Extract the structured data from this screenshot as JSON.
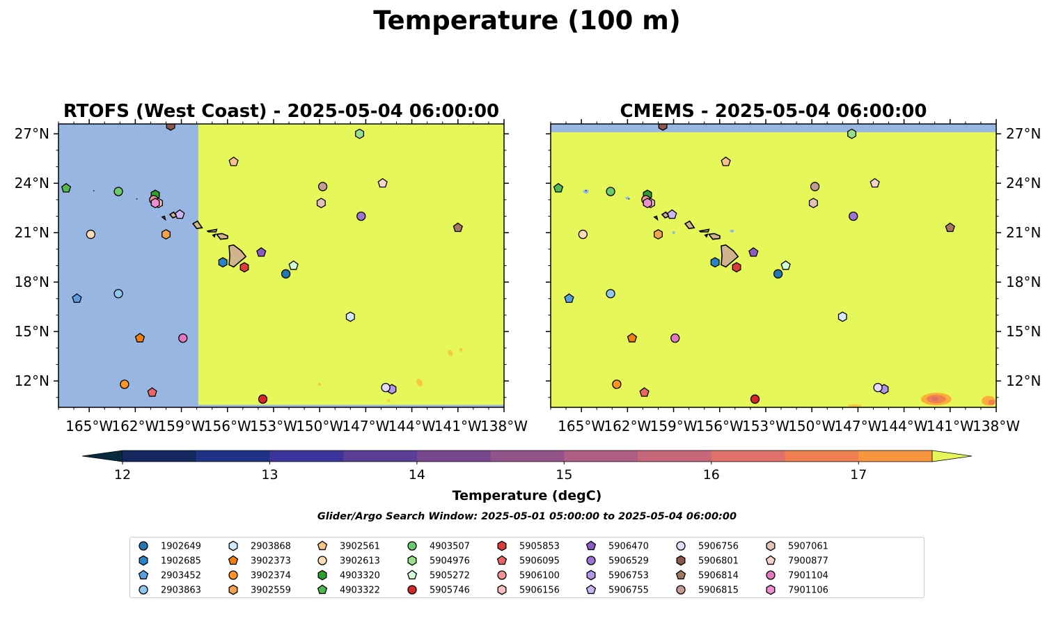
{
  "figure": {
    "suptitle": "Temperature (100 m)",
    "search_window": "Glider/Argo Search Window: 2025-05-01 05:00:00 to 2025-05-04 06:00:00"
  },
  "chart_data": [
    {
      "type": "map-heatmap",
      "title": "RTOFS (West Coast) - 2025-05-04 06:00:00",
      "xlim": [
        -167,
        -138
      ],
      "ylim": [
        10.4,
        27.6
      ],
      "xticks": [
        -165,
        -162,
        -159,
        -156,
        -153,
        -150,
        -147,
        -144,
        -141,
        -138
      ],
      "xtick_labels": [
        "165°W",
        "162°W",
        "159°W",
        "156°W",
        "153°W",
        "150°W",
        "147°W",
        "144°W",
        "141°W",
        "138°W"
      ],
      "yticks": [
        12,
        15,
        18,
        21,
        24,
        27
      ],
      "ytick_labels": [
        "12°N",
        "15°N",
        "18°N",
        "21°N",
        "24°N",
        "27°N"
      ],
      "ytick_side": "left",
      "field": {
        "no_data_color": "#98B6E2",
        "no_data_region": "west of 157.9°W (outside model domain)",
        "dominant_value": "> 17.5 degC"
      }
    },
    {
      "type": "map-heatmap",
      "title": "CMEMS - 2025-05-04 06:00:00",
      "xlim": [
        -167,
        -138
      ],
      "ylim": [
        10.4,
        27.6
      ],
      "xticks": [
        -165,
        -162,
        -159,
        -156,
        -153,
        -150,
        -147,
        -144,
        -141,
        -138
      ],
      "xtick_labels": [
        "165°W",
        "162°W",
        "159°W",
        "156°W",
        "153°W",
        "150°W",
        "147°W",
        "144°W",
        "141°W",
        "138°W"
      ],
      "yticks": [
        12,
        15,
        18,
        21,
        24,
        27
      ],
      "ytick_labels": [
        "12°N",
        "15°N",
        "18°N",
        "21°N",
        "24°N",
        "27°N"
      ],
      "ytick_side": "right",
      "field": {
        "no_data_color": "#98B6E2",
        "no_data_region": "north of 27.1°N",
        "dominant_value": "> 17.5 degC"
      }
    }
  ],
  "colorbar": {
    "label": "Temperature (degC)",
    "min": 11.75,
    "max": 17.5,
    "step": 0.5,
    "extend": "both",
    "ticks": [
      12,
      13,
      14,
      15,
      16,
      17
    ],
    "colors": [
      "#082A3E",
      "#14285F",
      "#1E3383",
      "#3A349C",
      "#5A3D97",
      "#774890",
      "#93538A",
      "#AF5E84",
      "#C9677A",
      "#E0706A",
      "#F07F52",
      "#F9953E",
      "#FDAE38",
      "#F6C93E",
      "#E6F759"
    ]
  },
  "floats": [
    {
      "id": "1902649",
      "marker": "circle",
      "color": "#1F77B4",
      "lon": -152.2,
      "lat": 18.5
    },
    {
      "id": "1902685",
      "marker": "hexagon",
      "color": "#2A83C4",
      "lon": -156.3,
      "lat": 19.2
    },
    {
      "id": "2903452",
      "marker": "pentagon",
      "color": "#5A9FE0",
      "lon": -165.8,
      "lat": 17.0
    },
    {
      "id": "2903863",
      "marker": "circle",
      "color": "#8FC8EE",
      "lon": -163.1,
      "lat": 17.3
    },
    {
      "id": "2903868",
      "marker": "hexagon",
      "color": "#D4E9FA",
      "lon": -148.0,
      "lat": 15.9
    },
    {
      "id": "3902373",
      "marker": "pentagon",
      "color": "#F07F0E",
      "lon": -161.7,
      "lat": 14.6
    },
    {
      "id": "3902374",
      "marker": "circle",
      "color": "#FF9524",
      "lon": -162.7,
      "lat": 11.8
    },
    {
      "id": "3902559",
      "marker": "hexagon",
      "color": "#F5A24C",
      "lon": -160.0,
      "lat": 20.9
    },
    {
      "id": "3902561",
      "marker": "pentagon",
      "color": "#F9C38A",
      "lon": -155.6,
      "lat": 25.3
    },
    {
      "id": "3902613",
      "marker": "circle",
      "color": "#FFDDB8",
      "lon": -164.9,
      "lat": 20.9
    },
    {
      "id": "4903320",
      "marker": "hexagon",
      "color": "#2CA02C",
      "lon": -160.7,
      "lat": 23.3
    },
    {
      "id": "4903322",
      "marker": "pentagon",
      "color": "#4FB84F",
      "lon": -166.5,
      "lat": 23.7
    },
    {
      "id": "4903507",
      "marker": "circle",
      "color": "#6ACB6A",
      "lon": -163.1,
      "lat": 23.5
    },
    {
      "id": "5904976",
      "marker": "hexagon",
      "color": "#98DF8A",
      "lon": -147.4,
      "lat": 27.0
    },
    {
      "id": "5905272",
      "marker": "pentagon",
      "color": "#D6FCD6",
      "lon": -151.7,
      "lat": 19.0
    },
    {
      "id": "5905746",
      "marker": "circle",
      "color": "#D62728",
      "lon": -153.7,
      "lat": 10.9
    },
    {
      "id": "5905853",
      "marker": "hexagon",
      "color": "#DE3A3A",
      "lon": -154.9,
      "lat": 18.9
    },
    {
      "id": "5906095",
      "marker": "pentagon",
      "color": "#EB6565",
      "lon": -160.9,
      "lat": 11.3
    },
    {
      "id": "5906100",
      "marker": "circle",
      "color": "#F29393",
      "lon": -160.8,
      "lat": 23.0
    },
    {
      "id": "5906156",
      "marker": "hexagon",
      "color": "#FAC0C0",
      "lon": -160.5,
      "lat": 22.8
    },
    {
      "id": "5906470",
      "marker": "pentagon",
      "color": "#8C5CC4",
      "lon": -153.8,
      "lat": 19.8
    },
    {
      "id": "5906529",
      "marker": "circle",
      "color": "#9C74D4",
      "lon": -147.3,
      "lat": 22.0
    },
    {
      "id": "5906753",
      "marker": "hexagon",
      "color": "#B396E6",
      "lon": -145.3,
      "lat": 11.5
    },
    {
      "id": "5906755",
      "marker": "pentagon",
      "color": "#CDB5F2",
      "lon": -159.1,
      "lat": 22.1
    },
    {
      "id": "5906756",
      "marker": "circle",
      "color": "#E6D8FA",
      "lon": -145.7,
      "lat": 11.6
    },
    {
      "id": "5906801",
      "marker": "hexagon",
      "color": "#8C564B",
      "lon": -159.7,
      "lat": 27.5
    },
    {
      "id": "5906814",
      "marker": "pentagon",
      "color": "#A4765F",
      "lon": -141.0,
      "lat": 21.3
    },
    {
      "id": "5906815",
      "marker": "circle",
      "color": "#C49C94",
      "lon": -149.8,
      "lat": 23.8
    },
    {
      "id": "5907061",
      "marker": "hexagon",
      "color": "#E6C2B6",
      "lon": -149.9,
      "lat": 22.8
    },
    {
      "id": "7900877",
      "marker": "pentagon",
      "color": "#F8D5CC",
      "lon": -145.9,
      "lat": 24.0
    },
    {
      "id": "7901104",
      "marker": "circle",
      "color": "#E377C2",
      "lon": -158.9,
      "lat": 14.6
    },
    {
      "id": "7901106",
      "marker": "hexagon",
      "color": "#EC8ED2",
      "lon": -160.7,
      "lat": 22.8
    }
  ]
}
